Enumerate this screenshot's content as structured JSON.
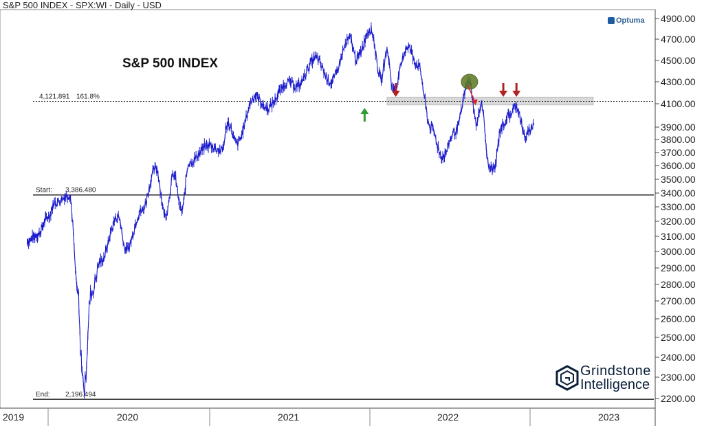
{
  "header": {
    "title": "S&P 500 INDEX - SPX:WI - Daily - USD"
  },
  "annotation_title": "S&P 500 INDEX",
  "brand": {
    "optuma": "Optuma",
    "grindstone_line1": "Grindstone",
    "grindstone_line2": "Intelligence"
  },
  "chart_data": {
    "type": "line",
    "title": "S&P 500 INDEX",
    "ylim": [
      2200,
      4900
    ],
    "y_ticks": [
      "4900.00",
      "4700.00",
      "4500.00",
      "4300.00",
      "4100.00",
      "3900.00",
      "3800.00",
      "3700.00",
      "3600.00",
      "3500.00",
      "3400.00",
      "3300.00",
      "3200.00",
      "3100.00",
      "3000.00",
      "2900.00",
      "2800.00",
      "2700.00",
      "2600.00",
      "2500.00",
      "2400.00",
      "2300.00",
      "2200.00"
    ],
    "y_tick_values": [
      4900,
      4700,
      4500,
      4300,
      4100,
      3900,
      3800,
      3700,
      3600,
      3500,
      3400,
      3300,
      3200,
      3100,
      3000,
      2900,
      2800,
      2700,
      2600,
      2500,
      2400,
      2300,
      2200
    ],
    "x_ticks": [
      "2019",
      "2020",
      "2021",
      "2022",
      "2023"
    ],
    "x": [
      "2019-11-01",
      "2019-12-01",
      "2020-01-02",
      "2020-01-17",
      "2020-02-19",
      "2020-03-09",
      "2020-03-16",
      "2020-03-23",
      "2020-04-08",
      "2020-04-29",
      "2020-06-08",
      "2020-06-26",
      "2020-07-31",
      "2020-09-02",
      "2020-09-23",
      "2020-10-12",
      "2020-10-30",
      "2020-11-16",
      "2020-12-31",
      "2021-01-29",
      "2021-02-12",
      "2021-03-04",
      "2021-04-15",
      "2021-05-12",
      "2021-06-30",
      "2021-07-19",
      "2021-08-31",
      "2021-10-04",
      "2021-11-18",
      "2021-12-01",
      "2022-01-03",
      "2022-01-27",
      "2022-02-09",
      "2022-02-24",
      "2022-03-29",
      "2022-04-20",
      "2022-05-20",
      "2022-06-16",
      "2022-07-15",
      "2022-08-16",
      "2022-09-02",
      "2022-09-12",
      "2022-09-30",
      "2022-10-12",
      "2022-10-28",
      "2022-11-15",
      "2022-12-01",
      "2022-12-22",
      "2023-01-10"
    ],
    "series": [
      {
        "values": [
          3066,
          3110,
          3230,
          3330,
          3386,
          2746,
          2386,
          2237,
          2750,
          2939,
          3232,
          3009,
          3271,
          3580,
          3237,
          3534,
          3270,
          3626,
          3756,
          3714,
          3934,
          3768,
          4170,
          4063,
          4298,
          4259,
          4522,
          4300,
          4704,
          4513,
          4796,
          4326,
          4587,
          4225,
          4631,
          4460,
          3901,
          3667,
          3863,
          4305,
          3924,
          4110,
          3585,
          3577,
          3901,
          4000,
          4080,
          3822,
          3920
        ]
      }
    ],
    "reference_lines": [
      {
        "label": "4,121.891",
        "label2": "161.8%",
        "value": 4121.891,
        "style": "dashed"
      },
      {
        "label": "Start:",
        "label2": "3,386.480",
        "value": 3386.48,
        "style": "solid"
      },
      {
        "label": "End:",
        "label2": "2,196.494",
        "value": 2196.494,
        "style": "solid"
      }
    ],
    "resistance_band": [
      4090,
      4160
    ],
    "markers": [
      {
        "kind": "up-arrow",
        "color": "#2e9c2e",
        "x": "2021-12-20",
        "below": 4100
      },
      {
        "kind": "down-arrow",
        "color": "#b22222",
        "x": "2022-03-01",
        "above": 4150
      },
      {
        "kind": "circle",
        "color": "#5b7a1f",
        "x": "2022-08-16",
        "value": 4300
      },
      {
        "kind": "diag-arrow",
        "color": "#e02020",
        "x": "2022-08-25",
        "value": 4180
      },
      {
        "kind": "down-arrow",
        "color": "#b22222",
        "x": "2022-11-01",
        "above": 4150
      },
      {
        "kind": "down-arrow",
        "color": "#b22222",
        "x": "2022-12-01",
        "above": 4150
      }
    ],
    "grid": false
  }
}
